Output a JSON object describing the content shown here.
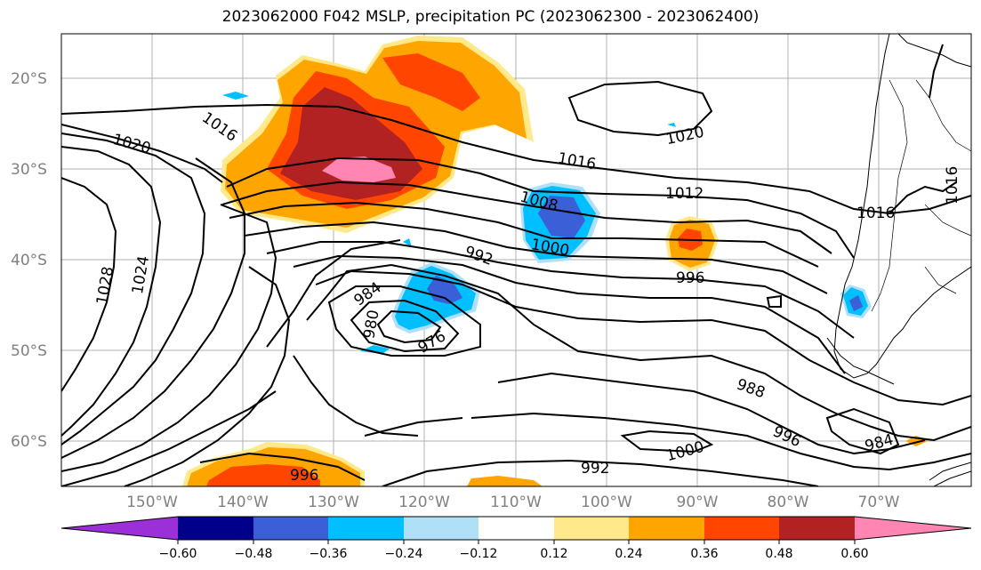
{
  "title": "2023062000 F042 MSLP, precipitation PC (2023062300 - 2023062400)",
  "map": {
    "lat_labels": [
      "20°S",
      "30°S",
      "40°S",
      "50°S",
      "60°S"
    ],
    "lon_labels": [
      "150°W",
      "140°W",
      "130°W",
      "120°W",
      "110°W",
      "100°W",
      "90°W",
      "80°W",
      "70°W"
    ],
    "grid": true,
    "isobar_labels": [
      "1016",
      "1020",
      "1016",
      "1012",
      "1008",
      "1000",
      "992",
      "984",
      "980",
      "976",
      "996",
      "1028",
      "1024",
      "1020",
      "1016",
      "1016",
      "988",
      "996",
      "984",
      "1000",
      "992",
      "996"
    ]
  },
  "colorbar": {
    "ticks": [
      "−0.60",
      "−0.48",
      "−0.36",
      "−0.24",
      "−0.12",
      "0.12",
      "0.24",
      "0.36",
      "0.48",
      "0.60"
    ],
    "colors": [
      "#9b30d9",
      "#00008b",
      "#3a5fd6",
      "#00bfff",
      "#b0e0f8",
      "#ffffff",
      "#ffe98a",
      "#ffa500",
      "#ff4500",
      "#b22222",
      "#ff85b3"
    ]
  }
}
